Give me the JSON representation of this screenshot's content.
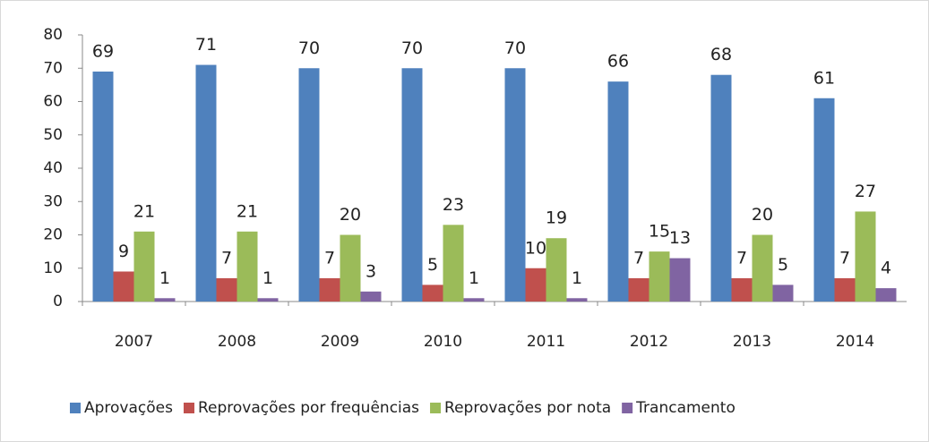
{
  "chart_data": {
    "type": "bar",
    "categories": [
      "2007",
      "2008",
      "2009",
      "2010",
      "2011",
      "2012",
      "2013",
      "2014"
    ],
    "series": [
      {
        "name": "Aprovações",
        "color": "#4f81bd",
        "values": [
          69,
          71,
          70,
          70,
          70,
          66,
          68,
          61
        ]
      },
      {
        "name": "Reprovações por frequências",
        "color": "#c0504d",
        "values": [
          9,
          7,
          7,
          5,
          10,
          7,
          7,
          7
        ]
      },
      {
        "name": "Reprovações por nota",
        "color": "#9bbb59",
        "values": [
          21,
          21,
          20,
          23,
          19,
          15,
          20,
          27
        ]
      },
      {
        "name": "Trancamento",
        "color": "#8064a2",
        "values": [
          1,
          1,
          3,
          1,
          1,
          13,
          5,
          4
        ]
      }
    ],
    "ylim": [
      0,
      80
    ],
    "yticks": [
      0,
      10,
      20,
      30,
      40,
      50,
      60,
      70,
      80
    ],
    "legend": "bottom"
  }
}
